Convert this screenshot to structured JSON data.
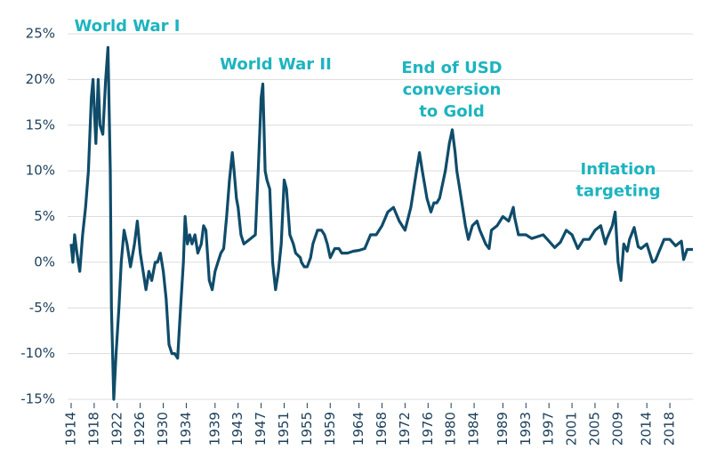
{
  "chart_data": {
    "type": "line",
    "color": "#0f4c6a",
    "grid": true,
    "xlim": [
      1914,
      2022
    ],
    "ylim": [
      -15,
      25
    ],
    "yticks": [
      {
        "value": -15,
        "label": "-15%"
      },
      {
        "value": -10,
        "label": "-10%"
      },
      {
        "value": -5,
        "label": "-5%"
      },
      {
        "value": 0,
        "label": "0%"
      },
      {
        "value": 5,
        "label": "5%"
      },
      {
        "value": 10,
        "label": "10%"
      },
      {
        "value": 15,
        "label": "15%"
      },
      {
        "value": 20,
        "label": "20%"
      },
      {
        "value": 25,
        "label": "25%"
      }
    ],
    "xticks": [
      1914,
      1918,
      1922,
      1926,
      1930,
      1934,
      1939,
      1943,
      1947,
      1951,
      1955,
      1959,
      1964,
      1968,
      1972,
      1976,
      1980,
      1984,
      1989,
      1993,
      1997,
      2001,
      2005,
      2009,
      2014,
      2018
    ],
    "annotations": [
      {
        "lines": [
          "World War I"
        ]
      },
      {
        "lines": [
          "World War II"
        ]
      },
      {
        "lines": [
          "End of USD",
          "conversion",
          "to Gold"
        ]
      },
      {
        "lines": [
          "Inflation",
          "targeting"
        ]
      }
    ],
    "x": [
      1914,
      1914.3,
      1914.6,
      1915,
      1915.5,
      1916,
      1916.5,
      1917,
      1917.5,
      1917.8,
      1918,
      1918.3,
      1918.7,
      1919,
      1919.5,
      1920,
      1920.4,
      1920.8,
      1921,
      1921.4,
      1921.8,
      1922.3,
      1922.7,
      1923.2,
      1923.7,
      1924.3,
      1925,
      1925.5,
      1926,
      1926.5,
      1927,
      1927.5,
      1928,
      1928.6,
      1929,
      1929.5,
      1930,
      1930.5,
      1931,
      1931.5,
      1932,
      1932.5,
      1933,
      1933.5,
      1933.8,
      1934.2,
      1934.6,
      1935,
      1935.5,
      1936,
      1936.6,
      1937,
      1937.4,
      1938,
      1938.5,
      1939,
      1939.5,
      1940,
      1940.5,
      1941,
      1941.5,
      1942,
      1942.3,
      1942.7,
      1943,
      1943.5,
      1944,
      1945,
      1946,
      1946.5,
      1947,
      1947.3,
      1947.7,
      1948,
      1948.5,
      1949,
      1949.5,
      1950,
      1950.5,
      1951,
      1951.4,
      1952,
      1952.6,
      1953,
      1953.8,
      1954,
      1954.5,
      1955,
      1955.6,
      1956,
      1956.8,
      1957.5,
      1958,
      1958.5,
      1959,
      1959.8,
      1960.5,
      1961,
      1962,
      1963,
      1964,
      1965,
      1966,
      1967,
      1968,
      1969,
      1970,
      1971,
      1972,
      1973,
      1974,
      1974.5,
      1975,
      1975.8,
      1976.5,
      1977,
      1977.5,
      1978,
      1979,
      1979.7,
      1980.2,
      1980.7,
      1981,
      1981.5,
      1982,
      1982.5,
      1983,
      1983.7,
      1984.5,
      1985,
      1986,
      1986.6,
      1987,
      1988,
      1989,
      1990,
      1990.8,
      1991,
      1991.7,
      1992,
      1993,
      1994,
      1995,
      1996,
      1997,
      1998,
      1999,
      2000,
      2001,
      2002,
      2003,
      2004,
      2005,
      2006,
      2006.8,
      2007,
      2008,
      2008.5,
      2009,
      2009.5,
      2010,
      2010.6,
      2011,
      2011.8,
      2012.5,
      2013,
      2014,
      2015,
      2015.5,
      2016,
      2017,
      2018,
      2019,
      2020,
      2020.4,
      2021,
      2022
    ],
    "values": [
      2,
      0,
      3,
      1,
      -1,
      3,
      6,
      10,
      18,
      20,
      17,
      13,
      20,
      15,
      14,
      20,
      23.5,
      10,
      -5,
      -15,
      -10,
      -5,
      0,
      3.5,
      2,
      -0.5,
      2,
      4.5,
      1,
      -1,
      -3,
      -1,
      -2,
      0,
      0,
      1,
      -1,
      -4,
      -9,
      -10,
      -10,
      -10.5,
      -5,
      0,
      5,
      2,
      3,
      2,
      3,
      1,
      2,
      4,
      3.5,
      -2,
      -3,
      -1,
      0,
      1,
      1.5,
      5,
      9,
      12,
      10,
      7,
      6,
      3,
      2,
      2.5,
      3,
      10,
      18,
      19.5,
      10,
      9,
      8,
      0,
      -3,
      -1,
      2,
      9,
      8,
      3,
      2,
      1,
      0.5,
      0,
      -0.5,
      -0.5,
      0.5,
      2,
      3.5,
      3.5,
      3,
      2,
      0.5,
      1.5,
      1.5,
      1,
      1,
      1.2,
      1.3,
      1.5,
      3,
      3,
      4,
      5.5,
      6,
      4.5,
      3.5,
      6,
      10,
      12,
      10,
      7,
      5.5,
      6.5,
      6.5,
      7,
      10,
      13,
      14.5,
      12,
      10,
      8,
      6,
      4,
      2.5,
      4,
      4.5,
      3.5,
      2,
      1.5,
      3.5,
      4,
      5,
      4.5,
      6,
      5,
      3,
      3,
      3,
      2.6,
      2.8,
      3,
      2.3,
      1.6,
      2.2,
      3.5,
      3,
      1.5,
      2.5,
      2.5,
      3.5,
      4,
      2,
      2.5,
      4,
      5.5,
      0,
      -2,
      2,
      1.2,
      2.5,
      3.8,
      1.7,
      1.5,
      2,
      0,
      0.2,
      1,
      2.5,
      2.5,
      1.8,
      2.3,
      0.3,
      1.4,
      1.4
    ]
  }
}
